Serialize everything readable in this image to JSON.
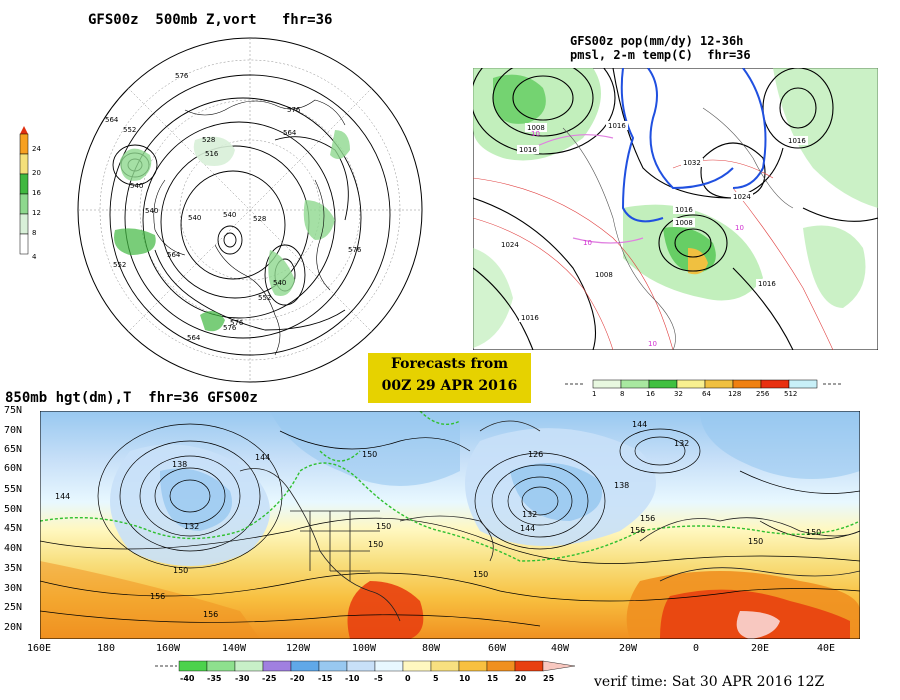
{
  "panel_500mb": {
    "title": "GFS00z  500mb Z,vort   fhr=36",
    "colorbar_labels": [
      "24",
      "20",
      "16",
      "12",
      "8",
      "4"
    ],
    "colorbar_colors": [
      "#e03010",
      "#f7a020",
      "#f4e07a",
      "#40b840",
      "#8ed88e",
      "#d8f0d8"
    ],
    "contour_labels": [
      "576",
      "564",
      "552",
      "540",
      "540",
      "540",
      "540",
      "564",
      "576",
      "516",
      "528",
      "564",
      "552",
      "576",
      "576",
      "564",
      "528",
      "540",
      "552",
      "576"
    ]
  },
  "panel_precip": {
    "title_line1": "GFS00z pop(mm/dy) 12-36h",
    "title_line2": "pmsl, 2-m temp(C)  fhr=36",
    "isobar_labels": [
      "1008",
      "1016",
      "1024",
      "1008",
      "1016",
      "1032",
      "1016",
      "1024",
      "1016",
      "1008",
      "1016",
      "1016"
    ],
    "temp_labels": [
      "10",
      "10",
      "10",
      "10"
    ],
    "colorbar_labels": [
      "1",
      "8",
      "16",
      "32",
      "64",
      "128",
      "256",
      "512"
    ],
    "colorbar_colors": [
      "#e8f8e0",
      "#a8e8a0",
      "#40c040",
      "#f8f090",
      "#f0c040",
      "#f08010",
      "#e83010",
      "#c8f0f8"
    ]
  },
  "banner": {
    "line1": "Forecasts from",
    "line2": "00Z 29 APR 2016"
  },
  "panel_850mb": {
    "title": "850mb hgt(dm),T  fhr=36 GFS00z",
    "lat_labels": [
      "75N",
      "70N",
      "65N",
      "60N",
      "55N",
      "50N",
      "45N",
      "40N",
      "35N",
      "30N",
      "25N",
      "20N"
    ],
    "lon_labels": [
      "160E",
      "180",
      "160W",
      "140W",
      "120W",
      "100W",
      "80W",
      "60W",
      "40W",
      "20W",
      "0",
      "20E",
      "40E"
    ],
    "height_labels": [
      "138",
      "144",
      "150",
      "132",
      "144",
      "150",
      "156",
      "150",
      "156",
      "126",
      "132",
      "144",
      "150",
      "156",
      "150",
      "132",
      "150",
      "138",
      "144",
      "150",
      "156"
    ],
    "colorbar_labels": [
      "-40",
      "-35",
      "-30",
      "-25",
      "-20",
      "-15",
      "-10",
      "-5",
      "0",
      "5",
      "10",
      "15",
      "20",
      "25"
    ],
    "colorbar_colors": [
      "#4cd24c",
      "#8ee08e",
      "#c8f0c8",
      "#a080e0",
      "#60a8e8",
      "#98c8f0",
      "#c8e0f8",
      "#e8f8ff",
      "#fff8c0",
      "#f8e080",
      "#f8c040",
      "#f09020",
      "#e84010",
      "#f8c8c0"
    ]
  },
  "verif": {
    "text": "verif time: Sat 30 APR 2016 12Z"
  }
}
